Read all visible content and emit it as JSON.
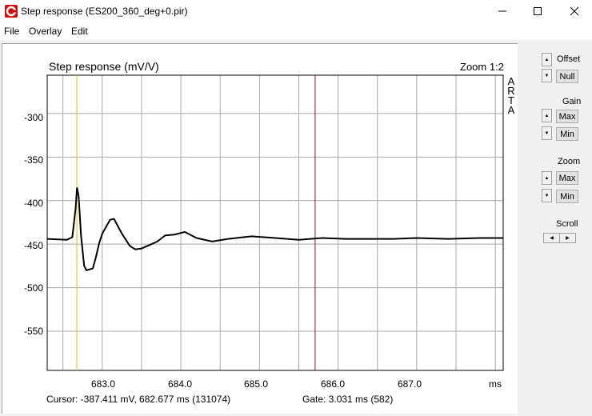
{
  "window": {
    "title": "Step response (ES200_360_deg+0.pir)",
    "accent": "#cc1111"
  },
  "menu": [
    "File",
    "Overlay",
    "Edit"
  ],
  "plot": {
    "title": "Step response (mV/V)",
    "zoom": "Zoom 1:2",
    "arta": [
      "A",
      "R",
      "T",
      "A"
    ],
    "y_ticks": [
      "-300",
      "-350",
      "-400",
      "-450",
      "-500",
      "-550"
    ],
    "x_ticks": [
      "683.0",
      "684.0",
      "685.0",
      "686.0",
      "687.0"
    ],
    "x_unit": "ms",
    "cursor_color": "#e0c020",
    "gate_color": "#a01010"
  },
  "chart_data": {
    "type": "line",
    "xlabel": "ms",
    "ylabel": "Step response (mV/V)",
    "xlim": [
      682.3,
      688.1
    ],
    "ylim": [
      -595,
      -256
    ],
    "cursor_x": 682.677,
    "gate_x": 685.708,
    "series": [
      {
        "x": [
          682.3,
          682.55,
          682.62,
          682.66,
          682.68,
          682.7,
          682.73,
          682.77,
          682.8,
          682.84,
          682.88,
          682.92,
          682.96,
          683.0,
          683.05,
          683.1,
          683.15,
          683.25,
          683.35,
          683.42,
          683.5,
          683.6,
          683.7,
          683.8,
          683.92,
          684.05,
          684.2,
          684.4,
          684.6,
          684.9,
          685.2,
          685.5,
          685.8,
          686.1,
          686.4,
          686.7,
          687.0,
          687.4,
          687.8,
          688.1
        ],
        "values": [
          -444,
          -445,
          -442,
          -410,
          -385,
          -395,
          -440,
          -475,
          -480,
          -479,
          -478,
          -465,
          -449,
          -438,
          -430,
          -422,
          -421,
          -438,
          -452,
          -456,
          -455,
          -451,
          -447,
          -440,
          -439,
          -436,
          -443,
          -447,
          -444,
          -441,
          -443,
          -445,
          -443,
          -444,
          -444,
          -444,
          -443,
          -444,
          -443,
          -443
        ]
      }
    ]
  },
  "status": {
    "cursor": "Cursor: -387.411 mV,  682.677 ms  (131074)",
    "gate": "Gate:   3.031 ms  (582)"
  },
  "panel": {
    "offset_label": "Offset",
    "null_label": "Null",
    "gain_label": "Gain",
    "gain_max": "Max",
    "gain_min": "Min",
    "zoom_label": "Zoom",
    "zoom_max": "Max",
    "zoom_min": "Min",
    "scroll_label": "Scroll"
  }
}
